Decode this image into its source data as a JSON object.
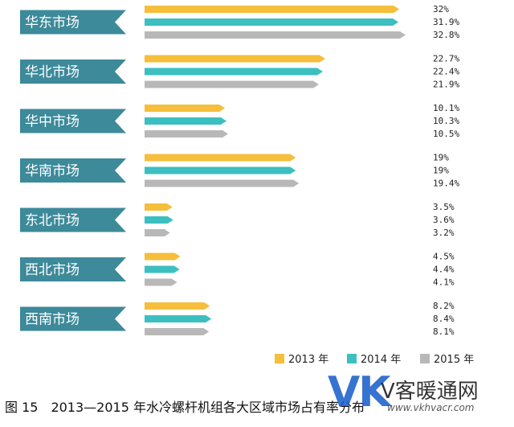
{
  "chart_data": {
    "type": "bar",
    "orientation": "horizontal",
    "categories": [
      "华东市场",
      "华北市场",
      "华中市场",
      "华南市场",
      "东北市场",
      "西北市场",
      "西南市场"
    ],
    "series": [
      {
        "name": "2013 年",
        "color": "#F5BE3B",
        "values": [
          32,
          22.7,
          10.1,
          19,
          3.5,
          4.5,
          8.2
        ],
        "labels": [
          "32%",
          "22.7%",
          "10.1%",
          "19%",
          "3.5%",
          "4.5%",
          "8.2%"
        ]
      },
      {
        "name": "2014 年",
        "color": "#3CBFC0",
        "values": [
          31.9,
          22.4,
          10.3,
          19,
          3.6,
          4.4,
          8.4
        ],
        "labels": [
          "31.9%",
          "22.4%",
          "10.3%",
          "19%",
          "3.6%",
          "4.4%",
          "8.4%"
        ]
      },
      {
        "name": "2015 年",
        "color": "#B8B8B8",
        "values": [
          32.8,
          21.9,
          10.5,
          19.4,
          3.2,
          4.1,
          8.1
        ],
        "labels": [
          "32.8%",
          "21.9%",
          "10.5%",
          "19.4%",
          "3.2%",
          "4.1%",
          "8.1%"
        ]
      }
    ],
    "xlim": [
      0,
      32.8
    ],
    "label_color": "#3C8A9A",
    "legend_position": "bottom-right",
    "grid": false
  },
  "caption": "图 15　2013—2015 年水冷螺杆机组各大区域市场占有率分布",
  "watermark": {
    "logo": "VK",
    "name": "V客暖通网",
    "url": "www.vkhvacr.com"
  }
}
